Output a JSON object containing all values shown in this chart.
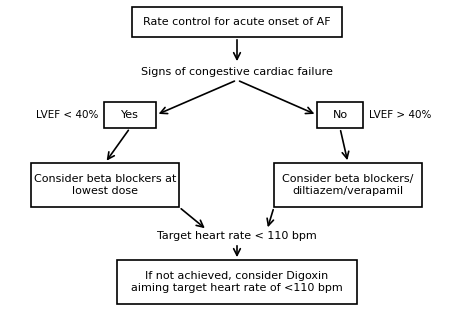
{
  "bg_color": "#ffffff",
  "box_color": "#ffffff",
  "box_edge_color": "#000000",
  "text_color": "#000000",
  "arrow_color": "#000000",
  "title": "Rate control for acute onset of AF",
  "node_question": "Signs of congestive cardiac failure",
  "node_yes": "Yes",
  "node_no": "No",
  "node_left_box": "Consider beta blockers at\nlowest dose",
  "node_right_box": "Consider beta blockers/\ndiltiazem/verapamil",
  "node_target": "Target heart rate < 110 bpm",
  "node_bottom": "If not achieved, consider Digoxin\naiming target heart rate of <110 bpm",
  "label_lvef_left": "LVEF < 40%",
  "label_lvef_right": "LVEF > 40%",
  "fontsize": 8.0,
  "fontsize_small": 7.5
}
